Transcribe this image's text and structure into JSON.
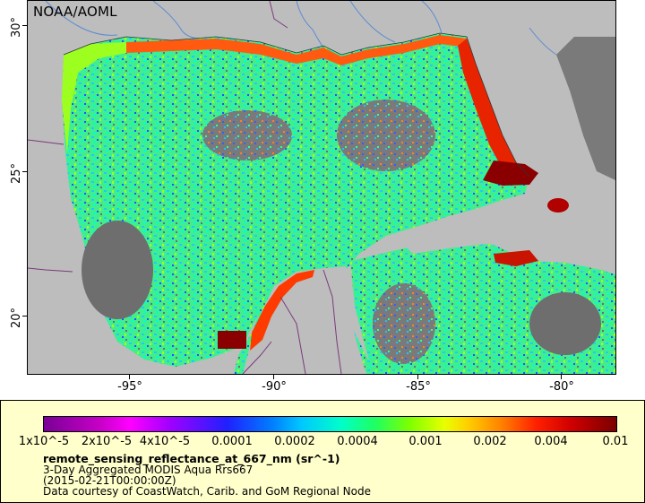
{
  "map": {
    "attribution": "NOAA/AOML",
    "lat_ticks": [
      "30°",
      "25°",
      "20°"
    ],
    "lon_ticks": [
      "-95°",
      "-90°",
      "-85°",
      "-80°"
    ]
  },
  "legend": {
    "ticks": [
      "1x10^-5",
      "2x10^-5",
      "4x10^-5",
      "0.0001",
      "0.0002",
      "0.0004",
      "0.001",
      "0.002",
      "0.004",
      "0.01"
    ],
    "title": "remote_sensing_reflectance_at_667_nm (sr^-1)",
    "line1": "3-Day Aggregated MODIS Aqua Rrs667",
    "line2": "(2015-02-21T00:00:00Z)",
    "line3": "Data courtesy of CoastWatch, Carib. and GoM Regional Node"
  },
  "colors": {
    "land": "#bdbdbd",
    "nodata": "#6e6e6e",
    "water": "#33e6a0",
    "coastal_high": "#cc1a00",
    "rivers": "#5a8cd2",
    "borders": "#7a3a7a"
  }
}
